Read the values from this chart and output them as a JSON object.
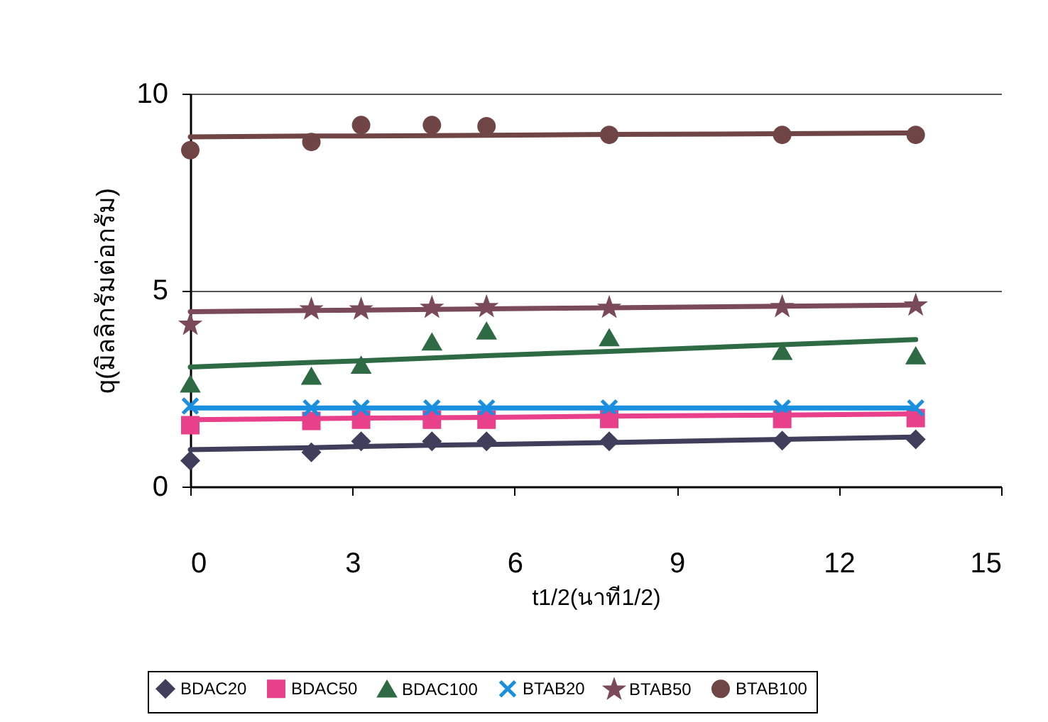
{
  "chart_data": {
    "type": "scatter",
    "xlabel": "t1/2(นาที1/2)",
    "ylabel": "q(มิลลิกรัมต่อกรัม)",
    "x": [
      0,
      2.24,
      3.16,
      4.47,
      5.48,
      7.75,
      10.95,
      13.42
    ],
    "xlim": [
      0,
      15
    ],
    "xticks": [
      0,
      3,
      6,
      9,
      12,
      15
    ],
    "ylim": [
      0,
      10
    ],
    "yticks": [
      0,
      5,
      10
    ],
    "grid": "y",
    "legend": "bottom",
    "series": [
      {
        "name": "BDAC20",
        "color": "#3f3f5c",
        "marker": "diamond",
        "values": [
          0.66,
          0.87,
          1.15,
          1.15,
          1.15,
          1.15,
          1.17,
          1.2
        ]
      },
      {
        "name": "BDAC50",
        "color": "#e8408a",
        "marker": "square",
        "values": [
          1.56,
          1.67,
          1.7,
          1.7,
          1.7,
          1.72,
          1.72,
          1.74
        ]
      },
      {
        "name": "BDAC100",
        "color": "#2e6b45",
        "marker": "triangle",
        "values": [
          2.6,
          2.8,
          3.08,
          3.67,
          3.95,
          3.78,
          3.43,
          3.32
        ]
      },
      {
        "name": "BTAB20",
        "color": "#1a8fe0",
        "marker": "cross",
        "values": [
          2.05,
          2.0,
          2.0,
          2.0,
          2.0,
          2.0,
          2.0,
          2.0
        ]
      },
      {
        "name": "BTAB50",
        "color": "#7a4a5a",
        "marker": "star",
        "values": [
          4.12,
          4.51,
          4.51,
          4.55,
          4.57,
          4.55,
          4.57,
          4.61
        ]
      },
      {
        "name": "BTAB100",
        "color": "#704545",
        "marker": "circle",
        "values": [
          8.56,
          8.77,
          9.2,
          9.2,
          9.17,
          8.95,
          8.95,
          8.95
        ]
      },
      {
        "type": "line",
        "color": "#3f3f5c",
        "values": [
          0.94,
          0.99,
          1.02,
          1.05,
          1.07,
          1.12,
          1.2,
          1.26
        ]
      },
      {
        "type": "line",
        "color": "#e8408a",
        "values": [
          1.7,
          1.73,
          1.74,
          1.75,
          1.76,
          1.79,
          1.82,
          1.85
        ]
      },
      {
        "type": "line",
        "color": "#2e6b45",
        "values": [
          3.04,
          3.16,
          3.2,
          3.27,
          3.33,
          3.44,
          3.61,
          3.74
        ]
      },
      {
        "type": "line",
        "color": "#1a8fe0",
        "values": [
          2.0,
          2.0,
          2.0,
          2.0,
          2.0,
          2.0,
          2.0,
          2.0
        ]
      },
      {
        "type": "line",
        "color": "#7a4a5a",
        "values": [
          4.45,
          4.48,
          4.49,
          4.51,
          4.52,
          4.55,
          4.59,
          4.62
        ]
      },
      {
        "type": "line",
        "color": "#704545",
        "values": [
          8.9,
          8.92,
          8.92,
          8.93,
          8.94,
          8.96,
          8.98,
          9.0
        ]
      }
    ]
  }
}
